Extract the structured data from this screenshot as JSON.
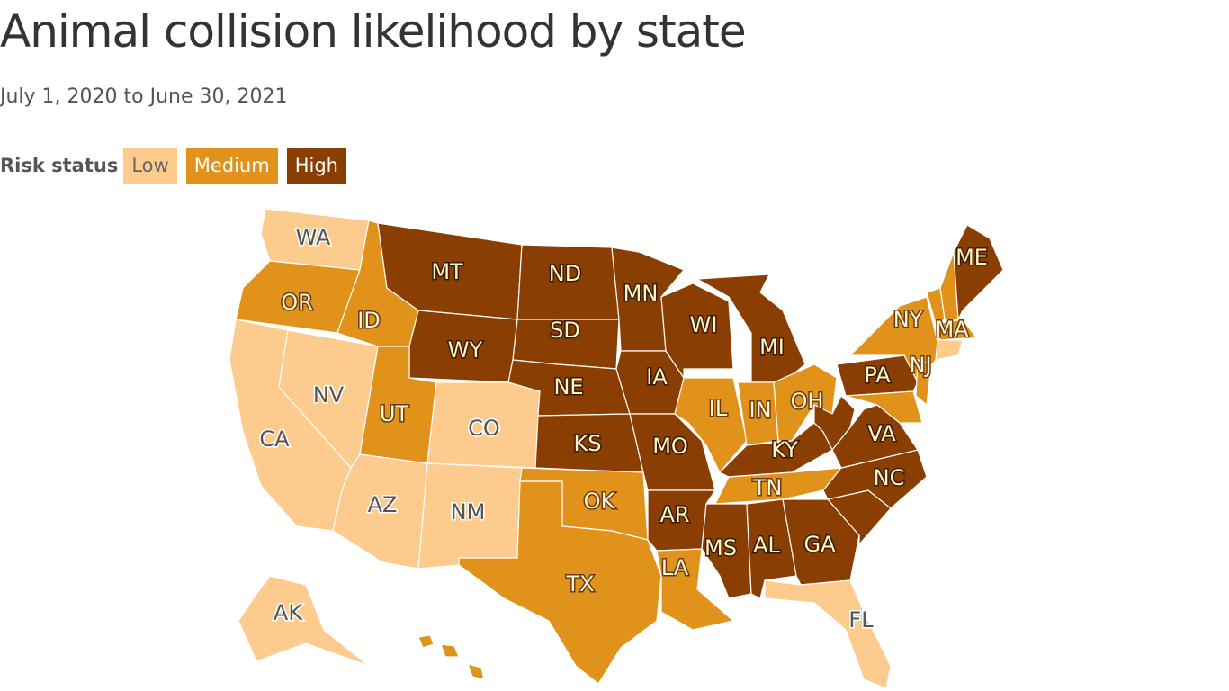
{
  "header": {
    "title": "Animal collision likelihood by state",
    "subtitle": "July 1, 2020 to June 30, 2021"
  },
  "legend": {
    "label": "Risk status",
    "items": [
      {
        "label": "Low",
        "color": "#fecb8f"
      },
      {
        "label": "Medium",
        "color": "#e0921a"
      },
      {
        "label": "High",
        "color": "#8b3e02"
      }
    ]
  },
  "states": [
    {
      "label": "WA",
      "risk": "Low"
    },
    {
      "label": "OR",
      "risk": "Medium"
    },
    {
      "label": "CA",
      "risk": "Low"
    },
    {
      "label": "NV",
      "risk": "Low"
    },
    {
      "label": "ID",
      "risk": "Medium"
    },
    {
      "label": "MT",
      "risk": "High"
    },
    {
      "label": "WY",
      "risk": "High"
    },
    {
      "label": "UT",
      "risk": "Medium"
    },
    {
      "label": "CO",
      "risk": "Low"
    },
    {
      "label": "AZ",
      "risk": "Low"
    },
    {
      "label": "NM",
      "risk": "Low"
    },
    {
      "label": "ND",
      "risk": "High"
    },
    {
      "label": "SD",
      "risk": "High"
    },
    {
      "label": "NE",
      "risk": "High"
    },
    {
      "label": "KS",
      "risk": "High"
    },
    {
      "label": "OK",
      "risk": "Medium"
    },
    {
      "label": "TX",
      "risk": "Medium"
    },
    {
      "label": "MN",
      "risk": "High"
    },
    {
      "label": "IA",
      "risk": "High"
    },
    {
      "label": "MO",
      "risk": "High"
    },
    {
      "label": "AR",
      "risk": "High"
    },
    {
      "label": "LA",
      "risk": "Medium"
    },
    {
      "label": "WI",
      "risk": "High"
    },
    {
      "label": "MI",
      "risk": "High"
    },
    {
      "label": "IL",
      "risk": "Medium"
    },
    {
      "label": "IN",
      "risk": "Medium"
    },
    {
      "label": "OH",
      "risk": "Medium"
    },
    {
      "label": "KY",
      "risk": "High"
    },
    {
      "label": "TN",
      "risk": "Medium"
    },
    {
      "label": "MS",
      "risk": "High"
    },
    {
      "label": "AL",
      "risk": "High"
    },
    {
      "label": "GA",
      "risk": "High"
    },
    {
      "label": "FL",
      "risk": "Low"
    },
    {
      "label": null,
      "risk": "High"
    },
    {
      "label": "NC",
      "risk": "High"
    },
    {
      "label": "VA",
      "risk": "High"
    },
    {
      "label": null,
      "risk": "High"
    },
    {
      "label": "PA",
      "risk": "High"
    },
    {
      "label": "NY",
      "risk": "Medium"
    },
    {
      "label": "NJ",
      "risk": "Medium"
    },
    {
      "label": null,
      "risk": "Medium"
    },
    {
      "label": null,
      "risk": "Medium"
    },
    {
      "label": null,
      "risk": "Medium"
    },
    {
      "label": "ME",
      "risk": "High"
    },
    {
      "label": "MA",
      "risk": "Medium"
    },
    {
      "label": null,
      "risk": "Low"
    },
    {
      "label": "AK",
      "risk": "Low"
    },
    {
      "label": null,
      "risk": "Medium"
    }
  ]
}
